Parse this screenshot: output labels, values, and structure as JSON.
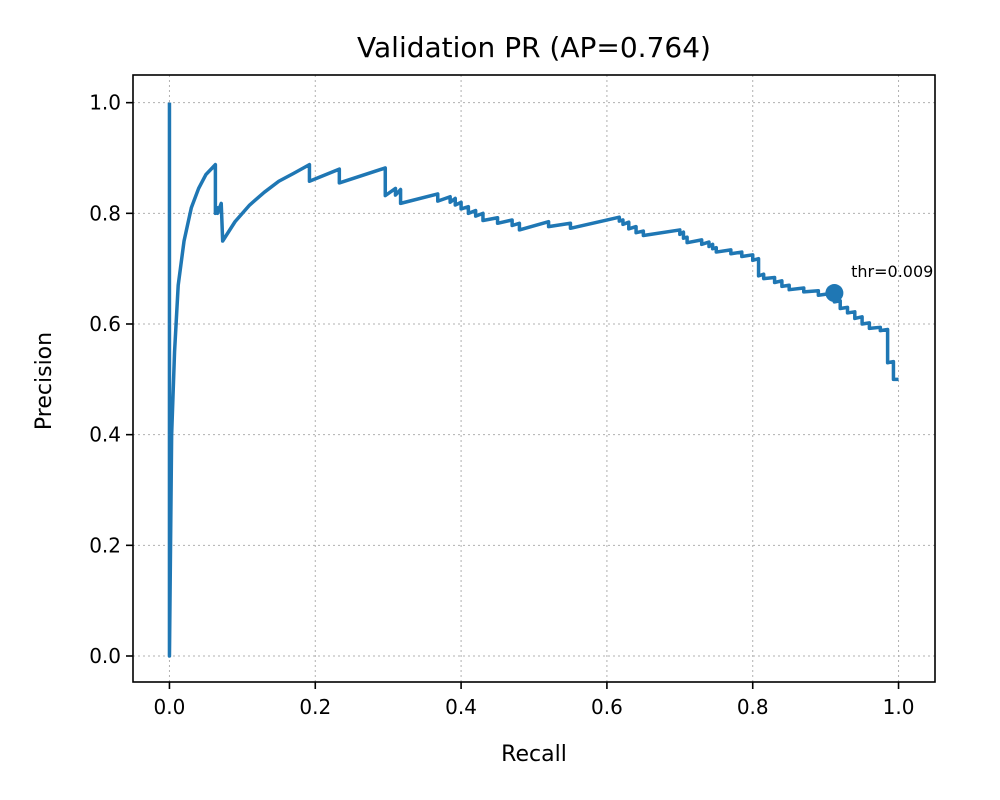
{
  "chart_data": {
    "type": "line",
    "title": "Validation PR (AP=0.764)",
    "xlabel": "Recall",
    "ylabel": "Precision",
    "xlim": [
      -0.05,
      1.05
    ],
    "ylim": [
      -0.047,
      1.05
    ],
    "xticks": [
      0.0,
      0.2,
      0.4,
      0.6,
      0.8,
      1.0
    ],
    "xtick_labels": [
      "0.0",
      "0.2",
      "0.4",
      "0.6",
      "0.8",
      "1.0"
    ],
    "yticks": [
      0.0,
      0.2,
      0.4,
      0.6,
      0.8,
      1.0
    ],
    "ytick_labels": [
      "0.0",
      "0.2",
      "0.4",
      "0.6",
      "0.8",
      "1.0"
    ],
    "grid": true,
    "line_color": "#1f77b4",
    "series": [
      {
        "points": [
          [
            0.0,
            1.0
          ],
          [
            0.0,
            0.0
          ],
          [
            0.003,
            0.4
          ],
          [
            0.007,
            0.55
          ],
          [
            0.012,
            0.67
          ],
          [
            0.02,
            0.75
          ],
          [
            0.03,
            0.81
          ],
          [
            0.04,
            0.845
          ],
          [
            0.05,
            0.87
          ],
          [
            0.063,
            0.888
          ],
          [
            0.063,
            0.8
          ],
          [
            0.066,
            0.81
          ],
          [
            0.066,
            0.8
          ],
          [
            0.071,
            0.818
          ],
          [
            0.073,
            0.75
          ],
          [
            0.09,
            0.785
          ],
          [
            0.11,
            0.815
          ],
          [
            0.13,
            0.838
          ],
          [
            0.15,
            0.858
          ],
          [
            0.17,
            0.872
          ],
          [
            0.192,
            0.888
          ],
          [
            0.192,
            0.858
          ],
          [
            0.233,
            0.88
          ],
          [
            0.233,
            0.855
          ],
          [
            0.296,
            0.882
          ],
          [
            0.296,
            0.832
          ],
          [
            0.31,
            0.845
          ],
          [
            0.31,
            0.833
          ],
          [
            0.317,
            0.843
          ],
          [
            0.317,
            0.818
          ],
          [
            0.368,
            0.835
          ],
          [
            0.368,
            0.822
          ],
          [
            0.385,
            0.83
          ],
          [
            0.385,
            0.82
          ],
          [
            0.392,
            0.827
          ],
          [
            0.392,
            0.815
          ],
          [
            0.4,
            0.82
          ],
          [
            0.4,
            0.808
          ],
          [
            0.41,
            0.812
          ],
          [
            0.41,
            0.8
          ],
          [
            0.42,
            0.805
          ],
          [
            0.42,
            0.795
          ],
          [
            0.43,
            0.8
          ],
          [
            0.43,
            0.787
          ],
          [
            0.45,
            0.792
          ],
          [
            0.45,
            0.782
          ],
          [
            0.47,
            0.788
          ],
          [
            0.47,
            0.778
          ],
          [
            0.48,
            0.782
          ],
          [
            0.48,
            0.77
          ],
          [
            0.52,
            0.785
          ],
          [
            0.52,
            0.776
          ],
          [
            0.55,
            0.782
          ],
          [
            0.55,
            0.773
          ],
          [
            0.617,
            0.793
          ],
          [
            0.617,
            0.786
          ],
          [
            0.622,
            0.788
          ],
          [
            0.622,
            0.78
          ],
          [
            0.63,
            0.784
          ],
          [
            0.63,
            0.772
          ],
          [
            0.64,
            0.776
          ],
          [
            0.64,
            0.765
          ],
          [
            0.65,
            0.768
          ],
          [
            0.65,
            0.76
          ],
          [
            0.7,
            0.77
          ],
          [
            0.7,
            0.762
          ],
          [
            0.705,
            0.766
          ],
          [
            0.705,
            0.755
          ],
          [
            0.71,
            0.757
          ],
          [
            0.71,
            0.747
          ],
          [
            0.73,
            0.752
          ],
          [
            0.73,
            0.744
          ],
          [
            0.74,
            0.748
          ],
          [
            0.74,
            0.74
          ],
          [
            0.745,
            0.744
          ],
          [
            0.745,
            0.736
          ],
          [
            0.75,
            0.738
          ],
          [
            0.75,
            0.73
          ],
          [
            0.77,
            0.734
          ],
          [
            0.77,
            0.727
          ],
          [
            0.785,
            0.73
          ],
          [
            0.785,
            0.722
          ],
          [
            0.8,
            0.725
          ],
          [
            0.8,
            0.715
          ],
          [
            0.808,
            0.718
          ],
          [
            0.808,
            0.687
          ],
          [
            0.815,
            0.69
          ],
          [
            0.815,
            0.682
          ],
          [
            0.83,
            0.684
          ],
          [
            0.83,
            0.675
          ],
          [
            0.84,
            0.678
          ],
          [
            0.84,
            0.668
          ],
          [
            0.85,
            0.67
          ],
          [
            0.85,
            0.662
          ],
          [
            0.87,
            0.665
          ],
          [
            0.87,
            0.658
          ],
          [
            0.89,
            0.66
          ],
          [
            0.89,
            0.652
          ],
          [
            0.912,
            0.656
          ],
          [
            0.912,
            0.64
          ],
          [
            0.92,
            0.642
          ],
          [
            0.92,
            0.628
          ],
          [
            0.93,
            0.63
          ],
          [
            0.93,
            0.62
          ],
          [
            0.94,
            0.622
          ],
          [
            0.94,
            0.61
          ],
          [
            0.95,
            0.613
          ],
          [
            0.95,
            0.6
          ],
          [
            0.96,
            0.602
          ],
          [
            0.96,
            0.592
          ],
          [
            0.975,
            0.594
          ],
          [
            0.975,
            0.588
          ],
          [
            0.985,
            0.59
          ],
          [
            0.985,
            0.53
          ],
          [
            0.993,
            0.532
          ],
          [
            0.993,
            0.5
          ],
          [
            1.0,
            0.5
          ]
        ]
      }
    ],
    "marker": {
      "x": 0.912,
      "y": 0.656
    },
    "annotation": {
      "text": "thr=0.009",
      "x": 0.935,
      "y": 0.685
    }
  }
}
